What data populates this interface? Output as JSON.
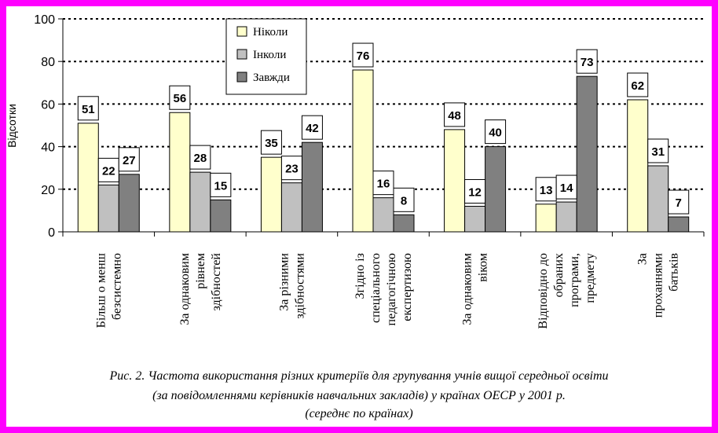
{
  "colors": {
    "frame": "#ff00ff",
    "never": "#ffffcc",
    "sometimes": "#c0c0c0",
    "always": "#808080"
  },
  "chart_data": {
    "type": "bar",
    "ylabel": "Відсотки",
    "ylim": [
      0,
      100
    ],
    "yticks": [
      0,
      20,
      40,
      60,
      80,
      100
    ],
    "grid": "dotted horizontal",
    "legend_position": "top-left",
    "categories": [
      [
        "Більш о менш",
        "безсистемно"
      ],
      [
        "За однаковим",
        "рівнем",
        "здібностей"
      ],
      [
        "За різними",
        "здібностями"
      ],
      [
        "Згідно із",
        "спеціального",
        "педагогічною",
        "експертизою"
      ],
      [
        "За однаковим",
        "віком"
      ],
      [
        "Відповідно до",
        "обраних",
        "програми,",
        "предмету"
      ],
      [
        "За",
        "проханнями",
        "батьків"
      ]
    ],
    "series": [
      {
        "name": "Ніколи",
        "values": [
          51,
          56,
          35,
          76,
          48,
          13,
          62
        ]
      },
      {
        "name": "Інколи",
        "values": [
          22,
          28,
          23,
          16,
          12,
          14,
          31
        ]
      },
      {
        "name": "Завжди",
        "values": [
          27,
          15,
          42,
          8,
          40,
          73,
          7
        ]
      }
    ]
  },
  "caption": {
    "line1": "Рис. 2.  Частота використання різних критеріїв для групування учнів вищої середньої освіти",
    "line2": "(за повідомленнями керівників навчальних закладів) у країнах ОЕСР  у 2001 р.",
    "line3": "(середнє по країнах)"
  }
}
